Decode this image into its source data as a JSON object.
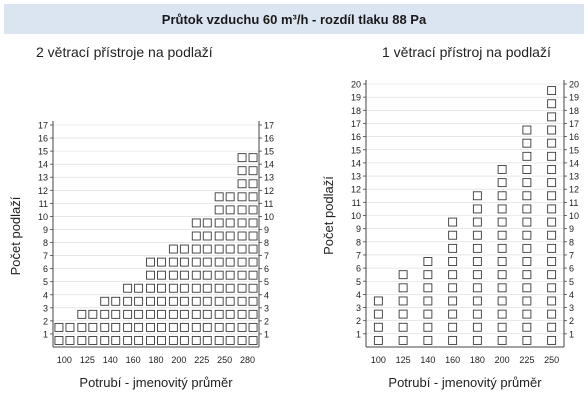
{
  "title": "Průtok vzduchu 60 m³/h - rozdíl tlaku 88 Pa",
  "colors": {
    "title_bg": "#dbe5f1",
    "box_stroke": "#3a3a3a",
    "axis": "#444444",
    "grid": "#d9d9d9"
  },
  "chart_data": [
    {
      "type": "bar",
      "title": "2 větrací přístroje na podlaží",
      "xlabel": "Potrubí - jmenovitý průměr",
      "ylabel": "Počet podlaží",
      "categories": [
        "100",
        "125",
        "140",
        "160",
        "180",
        "200",
        "225",
        "250",
        "280"
      ],
      "values": [
        2,
        3,
        4,
        5,
        7,
        8,
        10,
        12,
        15
      ],
      "ylim": [
        0,
        17
      ],
      "yticks": [
        "1",
        "2",
        "3",
        "4",
        "5",
        "6",
        "7",
        "8",
        "9",
        "10",
        "11",
        "12",
        "13",
        "14",
        "15",
        "16",
        "17"
      ],
      "boxes_per_category": 2,
      "grid": true,
      "axis_labels_both_sides": true
    },
    {
      "type": "bar",
      "title": "1 větrací přístroj na podlaží",
      "xlabel": "Potrubí - jmenovitý průměr",
      "ylabel": "Počet podlaží",
      "categories": [
        "100",
        "125",
        "140",
        "160",
        "180",
        "200",
        "225",
        "250"
      ],
      "values": [
        4,
        6,
        7,
        10,
        12,
        14,
        17,
        20
      ],
      "ylim": [
        0,
        20
      ],
      "yticks": [
        "1",
        "2",
        "3",
        "4",
        "5",
        "6",
        "7",
        "8",
        "9",
        "10",
        "11",
        "12",
        "13",
        "14",
        "15",
        "16",
        "17",
        "18",
        "19",
        "20"
      ],
      "boxes_per_category": 1,
      "grid": true,
      "axis_labels_both_sides": true
    }
  ]
}
